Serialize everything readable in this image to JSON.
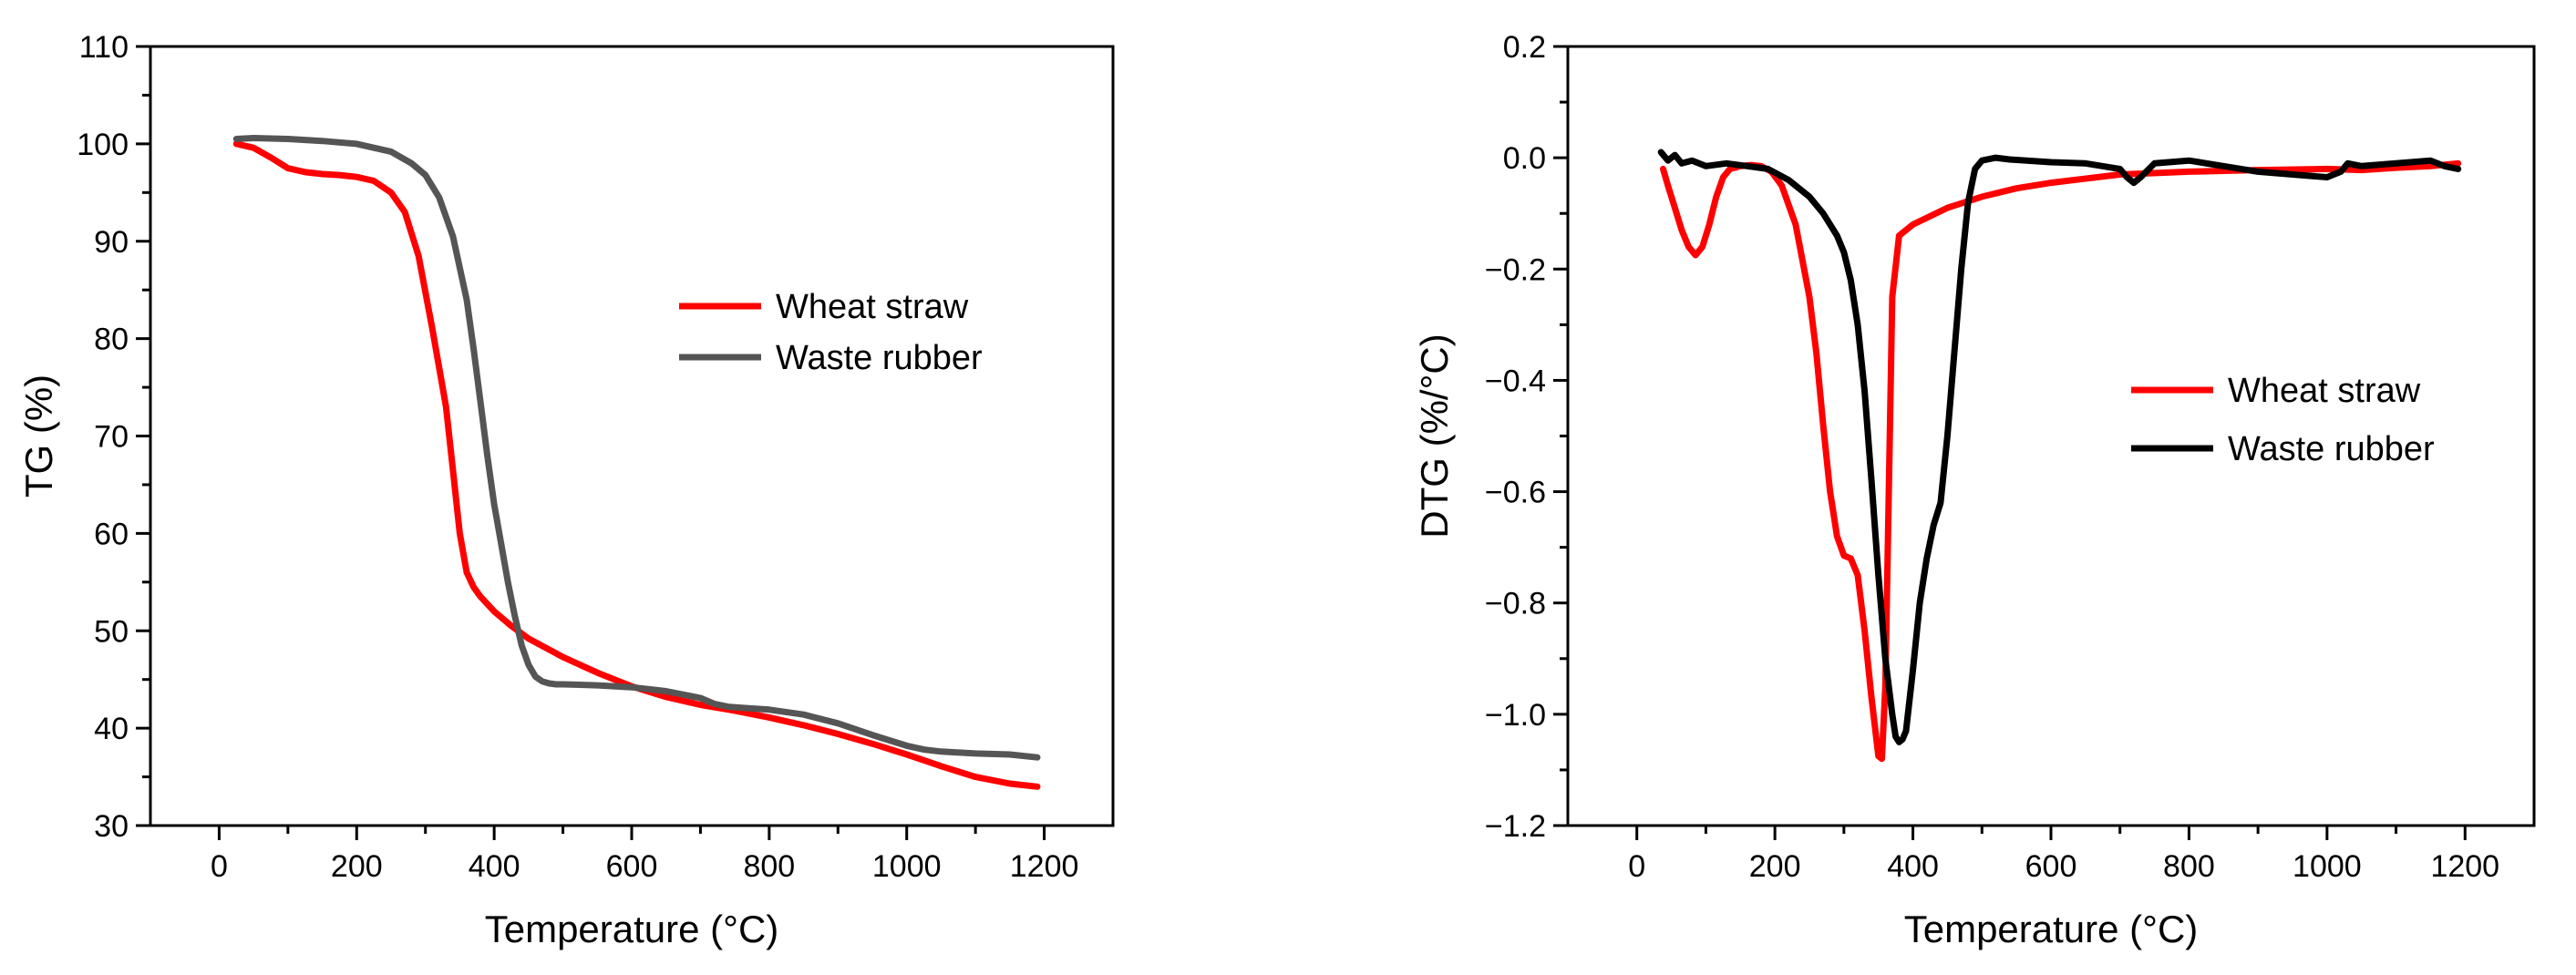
{
  "chart_data": [
    {
      "type": "line",
      "id": "tg",
      "title": "",
      "xlabel": "Temperature (°C)",
      "ylabel": "TG (%)",
      "xlim": [
        -100,
        1300
      ],
      "ylim": [
        30,
        110
      ],
      "xticks": [
        0,
        200,
        400,
        600,
        800,
        1000,
        1200
      ],
      "yticks": [
        30,
        40,
        50,
        60,
        70,
        80,
        90,
        100,
        110
      ],
      "xtick_labels": [
        "0",
        "200",
        "400",
        "600",
        "800",
        "1000",
        "1200"
      ],
      "ytick_labels": [
        "30",
        "40",
        "50",
        "60",
        "70",
        "80",
        "90",
        "100",
        "110"
      ],
      "grid": false,
      "legend_position": "center-right",
      "series": [
        {
          "name": "Wheat straw",
          "color": "#ff0000",
          "x": [
            25,
            50,
            75,
            100,
            125,
            150,
            175,
            200,
            225,
            250,
            270,
            290,
            310,
            330,
            340,
            350,
            360,
            370,
            380,
            400,
            425,
            450,
            500,
            550,
            600,
            650,
            700,
            750,
            800,
            850,
            900,
            950,
            1000,
            1050,
            1100,
            1150,
            1190
          ],
          "values": [
            100,
            99.6,
            98.6,
            97.5,
            97.1,
            96.9,
            96.8,
            96.6,
            96.2,
            95,
            93,
            88.5,
            81,
            73,
            66.5,
            60,
            56,
            54.5,
            53.5,
            52,
            50.5,
            49.2,
            47.3,
            45.7,
            44.3,
            43.2,
            42.4,
            41.8,
            41.1,
            40.3,
            39.4,
            38.4,
            37.3,
            36.1,
            35,
            34.3,
            34
          ]
        },
        {
          "name": "Waste rubber",
          "color": "#555555",
          "x": [
            25,
            50,
            100,
            150,
            200,
            250,
            280,
            300,
            320,
            340,
            360,
            370,
            380,
            390,
            400,
            410,
            420,
            430,
            440,
            450,
            460,
            470,
            480,
            490,
            500,
            550,
            600,
            650,
            700,
            720,
            740,
            760,
            800,
            850,
            900,
            950,
            1000,
            1025,
            1050,
            1100,
            1150,
            1190
          ],
          "values": [
            100.5,
            100.6,
            100.5,
            100.3,
            100,
            99.2,
            98,
            96.8,
            94.5,
            90.5,
            84,
            79,
            73.5,
            68,
            63,
            59,
            55,
            51.5,
            48.5,
            46.5,
            45.3,
            44.8,
            44.6,
            44.5,
            44.5,
            44.4,
            44.2,
            43.8,
            43.1,
            42.5,
            42.2,
            42.1,
            41.9,
            41.4,
            40.5,
            39.3,
            38.2,
            37.8,
            37.6,
            37.4,
            37.3,
            37
          ]
        }
      ]
    },
    {
      "type": "line",
      "id": "dtg",
      "title": "",
      "xlabel": "Temperature (°C)",
      "ylabel": "DTG (%/°C)",
      "xlim": [
        -100,
        1300
      ],
      "ylim": [
        -1.2,
        0.2
      ],
      "xticks": [
        0,
        200,
        400,
        600,
        800,
        1000,
        1200
      ],
      "yticks": [
        -1.2,
        -1.0,
        -0.8,
        -0.6,
        -0.4,
        -0.2,
        0.0,
        0.2
      ],
      "xtick_labels": [
        "0",
        "200",
        "400",
        "600",
        "800",
        "1000",
        "1200"
      ],
      "ytick_labels": [
        "−1.2",
        "−1.0",
        "−0.8",
        "−0.6",
        "−0.4",
        "−0.2",
        "0.0",
        "0.2"
      ],
      "grid": false,
      "legend_position": "center-right",
      "series": [
        {
          "name": "Wheat straw",
          "color": "#ff0000",
          "x": [
            38,
            45,
            55,
            65,
            75,
            85,
            95,
            105,
            115,
            125,
            135,
            150,
            165,
            180,
            195,
            210,
            230,
            250,
            260,
            270,
            280,
            290,
            300,
            310,
            320,
            330,
            340,
            350,
            355,
            360,
            365,
            370,
            380,
            400,
            450,
            500,
            550,
            600,
            700,
            800,
            900,
            1000,
            1050,
            1100,
            1150,
            1190
          ],
          "values": [
            -0.02,
            -0.05,
            -0.09,
            -0.13,
            -0.16,
            -0.175,
            -0.16,
            -0.12,
            -0.07,
            -0.035,
            -0.02,
            -0.015,
            -0.013,
            -0.015,
            -0.025,
            -0.05,
            -0.12,
            -0.25,
            -0.35,
            -0.48,
            -0.6,
            -0.68,
            -0.715,
            -0.72,
            -0.75,
            -0.85,
            -0.97,
            -1.075,
            -1.08,
            -0.95,
            -0.6,
            -0.25,
            -0.14,
            -0.12,
            -0.09,
            -0.07,
            -0.055,
            -0.045,
            -0.03,
            -0.025,
            -0.022,
            -0.02,
            -0.022,
            -0.018,
            -0.015,
            -0.01
          ]
        },
        {
          "name": "Waste rubber",
          "color": "#000000",
          "x": [
            35,
            45,
            55,
            65,
            80,
            100,
            130,
            160,
            190,
            220,
            250,
            270,
            290,
            300,
            310,
            320,
            330,
            340,
            350,
            360,
            370,
            375,
            380,
            385,
            390,
            400,
            410,
            420,
            430,
            440,
            450,
            460,
            470,
            480,
            490,
            500,
            520,
            540,
            600,
            650,
            700,
            710,
            720,
            730,
            750,
            800,
            850,
            900,
            950,
            1000,
            1020,
            1030,
            1050,
            1100,
            1150,
            1170,
            1190
          ],
          "values": [
            0.01,
            -0.005,
            0.005,
            -0.01,
            -0.005,
            -0.015,
            -0.01,
            -0.015,
            -0.02,
            -0.04,
            -0.07,
            -0.1,
            -0.14,
            -0.17,
            -0.22,
            -0.3,
            -0.42,
            -0.58,
            -0.75,
            -0.9,
            -1.0,
            -1.04,
            -1.05,
            -1.045,
            -1.03,
            -0.92,
            -0.8,
            -0.72,
            -0.66,
            -0.62,
            -0.5,
            -0.35,
            -0.2,
            -0.08,
            -0.02,
            -0.005,
            0.0,
            -0.003,
            -0.008,
            -0.01,
            -0.02,
            -0.035,
            -0.045,
            -0.035,
            -0.01,
            -0.005,
            -0.015,
            -0.025,
            -0.03,
            -0.035,
            -0.025,
            -0.01,
            -0.015,
            -0.01,
            -0.005,
            -0.015,
            -0.02
          ]
        }
      ]
    }
  ]
}
